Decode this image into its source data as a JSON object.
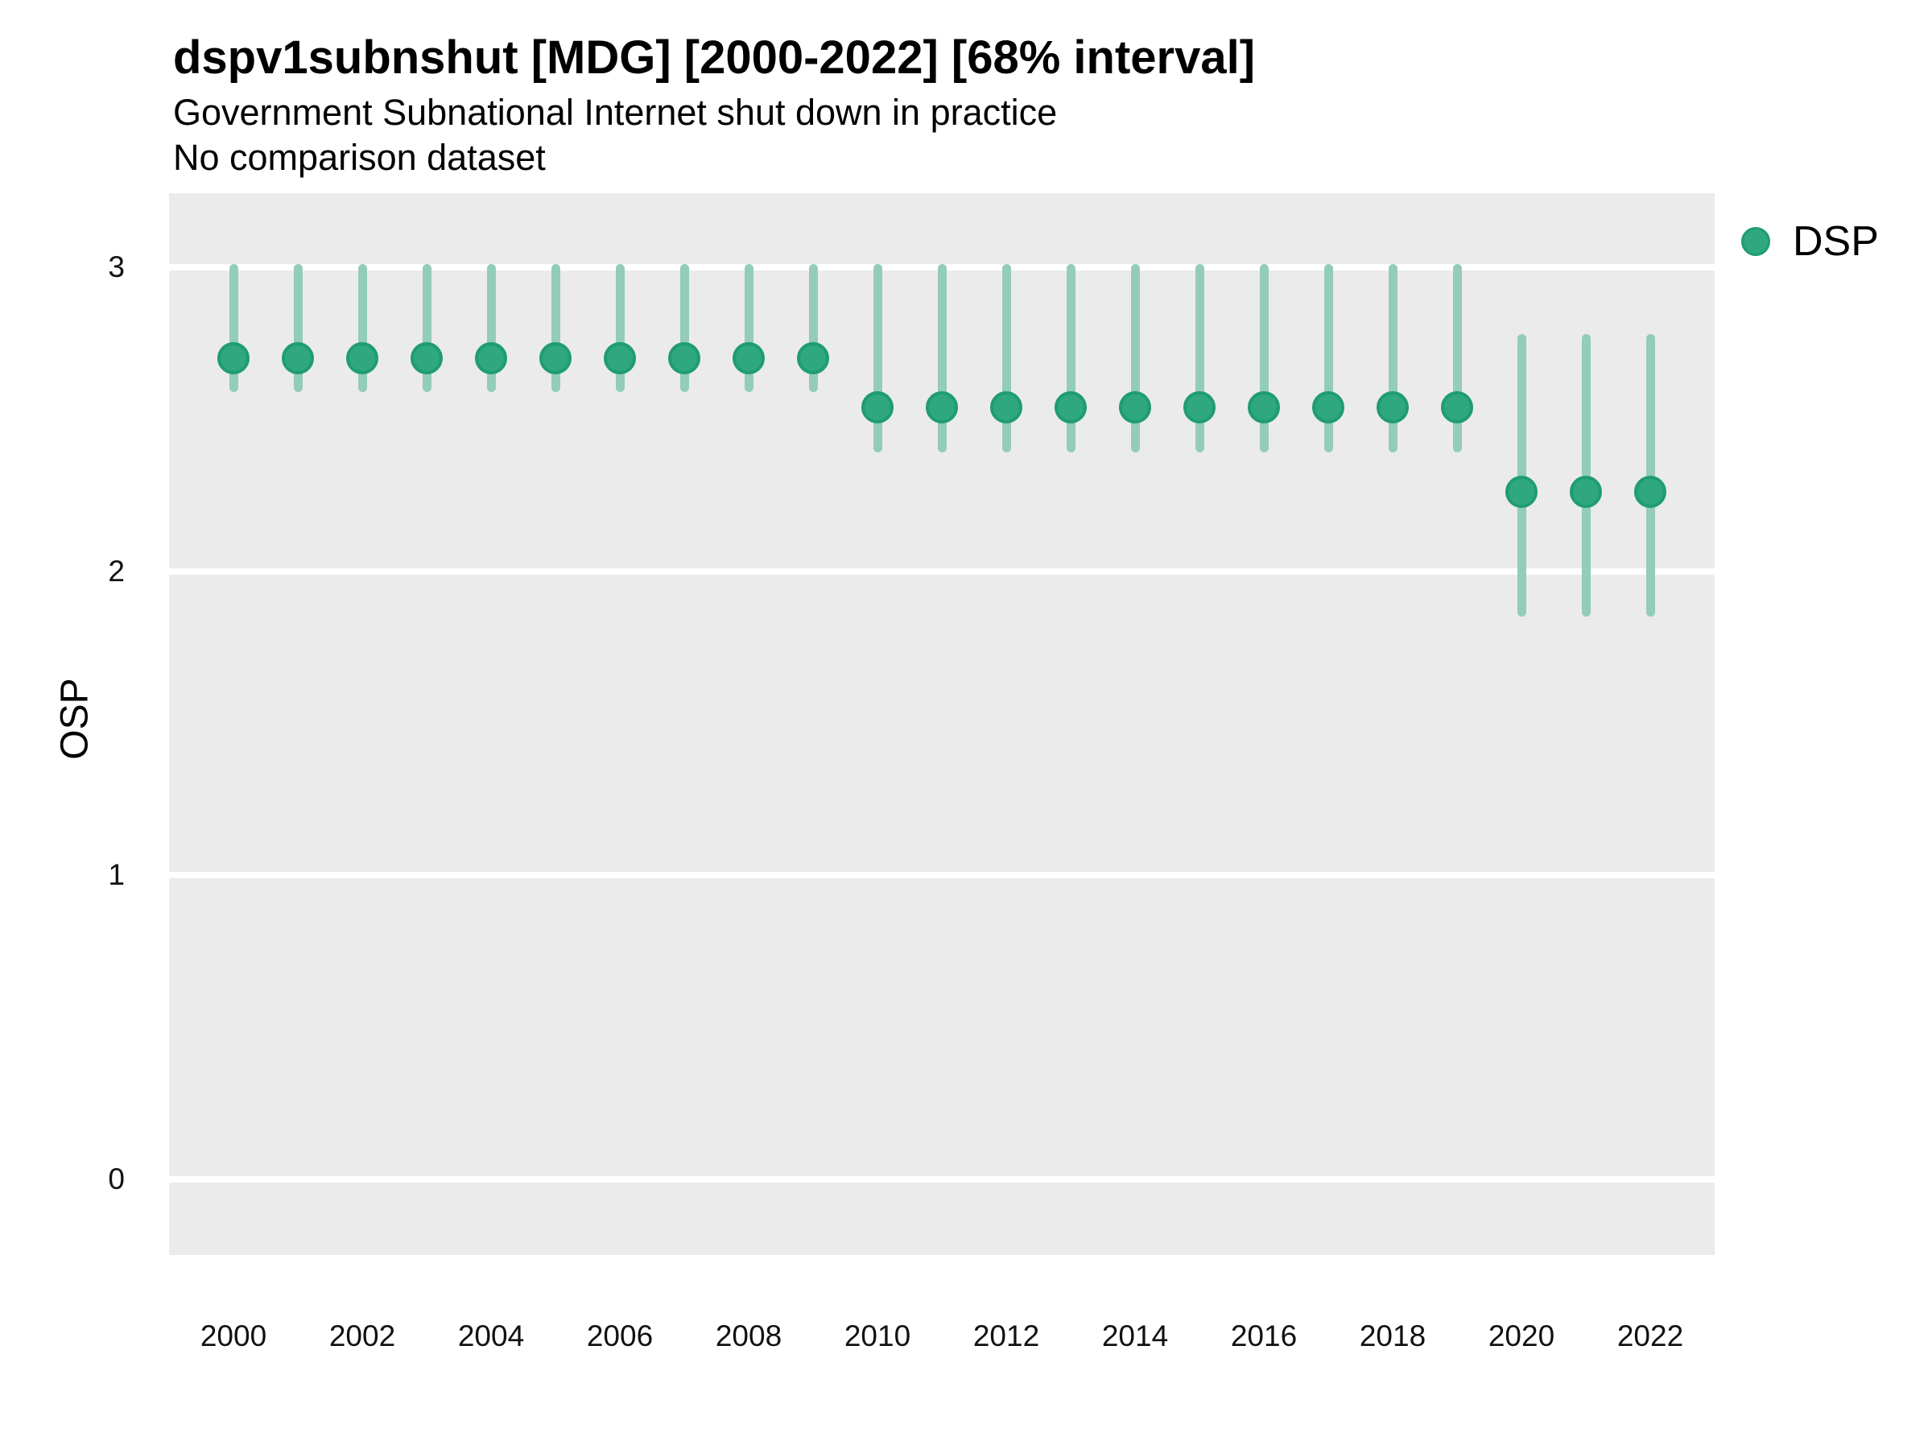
{
  "header": {
    "title": "dspv1subnshut [MDG] [2000-2022] [68% interval]",
    "subtitle1": "Government Subnational Internet shut down in practice",
    "subtitle2": "No comparison dataset"
  },
  "legend": {
    "label": "DSP"
  },
  "axes": {
    "y_title": "OSP",
    "y_ticks": [
      3,
      2,
      1,
      0
    ],
    "x_tick_labels": [
      "2000",
      "2002",
      "2004",
      "2006",
      "2008",
      "2010",
      "2012",
      "2014",
      "2016",
      "2018",
      "2020",
      "2022"
    ]
  },
  "colors": {
    "point_fill": "#2FA77F",
    "point_ring": "#1F9C73",
    "interval": "#93CDB7",
    "panel_bg": "#EBEBEB",
    "gridline": "#FFFFFF",
    "tick_text": "#111111",
    "text": "#000000"
  },
  "chart_data": {
    "type": "scatter",
    "series_name": "DSP",
    "title": "dspv1subnshut [MDG] [2000-2022] [68% interval]",
    "subtitle": "Government Subnational Internet shut down in practice",
    "note": "No comparison dataset",
    "interval_label": "68% interval",
    "ylabel": "OSP",
    "xlabel": "",
    "ylim": [
      -0.25,
      3.24
    ],
    "y_ticks": [
      0,
      1,
      2,
      3
    ],
    "x_tick_labels": [
      2000,
      2002,
      2004,
      2006,
      2008,
      2010,
      2012,
      2014,
      2016,
      2018,
      2020,
      2022
    ],
    "grid": "major-horizontal-only",
    "legend_position": "top-right",
    "x": [
      2000,
      2001,
      2002,
      2003,
      2004,
      2005,
      2006,
      2007,
      2008,
      2009,
      2010,
      2011,
      2012,
      2013,
      2014,
      2015,
      2016,
      2017,
      2018,
      2019,
      2020,
      2021,
      2022
    ],
    "estimates": [
      2.7,
      2.7,
      2.7,
      2.7,
      2.7,
      2.7,
      2.7,
      2.7,
      2.7,
      2.7,
      2.54,
      2.54,
      2.54,
      2.54,
      2.54,
      2.54,
      2.54,
      2.54,
      2.54,
      2.54,
      2.26,
      2.26,
      2.26
    ],
    "ci_low": [
      2.59,
      2.59,
      2.59,
      2.59,
      2.59,
      2.59,
      2.59,
      2.59,
      2.59,
      2.59,
      2.39,
      2.39,
      2.39,
      2.39,
      2.39,
      2.39,
      2.39,
      2.39,
      2.39,
      2.39,
      1.85,
      1.85,
      1.85
    ],
    "ci_high": [
      3.01,
      3.01,
      3.01,
      3.01,
      3.01,
      3.01,
      3.01,
      3.01,
      3.01,
      3.01,
      3.01,
      3.01,
      3.01,
      3.01,
      3.01,
      3.01,
      3.01,
      3.01,
      3.01,
      3.01,
      2.78,
      2.78,
      2.78
    ]
  }
}
